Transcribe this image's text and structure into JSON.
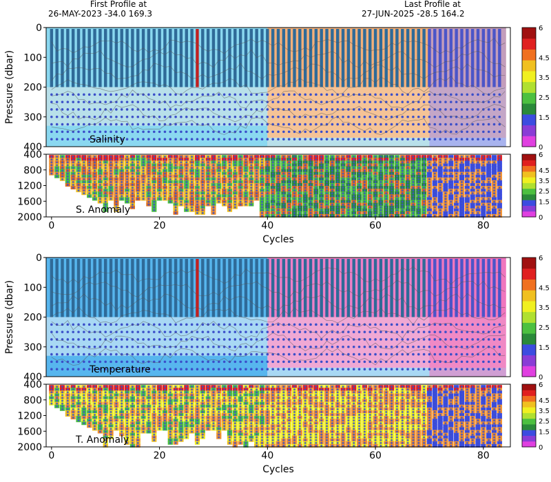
{
  "header": {
    "first_label": "First Profile at",
    "first_info": "26-MAY-2023    -34.0  169.3",
    "last_label": "Last Profile at",
    "last_info": "27-JUN-2025    -28.5  164.2"
  },
  "chart_data": [
    {
      "type": "heatmap",
      "name": "Salinity",
      "ylabel": "Pressure (dbar)",
      "xlim": [
        -1,
        85
      ],
      "ylim": [
        400,
        0
      ],
      "yticks": [
        "0",
        "100",
        "200",
        "300",
        "400"
      ],
      "colorbar": [
        "0",
        "1.5",
        "2.5",
        "3.5",
        "4.5",
        "6"
      ]
    },
    {
      "type": "heatmap",
      "name": "S. Anomaly",
      "xlabel": "Cycles",
      "xlim": [
        -1,
        85
      ],
      "ylim": [
        2000,
        400
      ],
      "yticks": [
        "400",
        "800",
        "1200",
        "1600",
        "2000"
      ],
      "xticks": [
        "0",
        "20",
        "40",
        "60",
        "80"
      ],
      "colorbar": [
        "0",
        "1.5",
        "2.5",
        "3.5",
        "4.5",
        "6"
      ]
    },
    {
      "type": "heatmap",
      "name": "Temperature",
      "ylabel": "Pressure (dbar)",
      "xlim": [
        -1,
        85
      ],
      "ylim": [
        400,
        0
      ],
      "yticks": [
        "0",
        "100",
        "200",
        "300",
        "400"
      ],
      "colorbar": [
        "0",
        "1.5",
        "2.5",
        "3.5",
        "4.5",
        "6"
      ]
    },
    {
      "type": "heatmap",
      "name": "T. Anomaly",
      "xlabel": "Cycles",
      "xlim": [
        -1,
        85
      ],
      "ylim": [
        2000,
        400
      ],
      "yticks": [
        "400",
        "800",
        "1200",
        "1600",
        "2000"
      ],
      "xticks": [
        "0",
        "20",
        "40",
        "60",
        "80"
      ],
      "colorbar": [
        "0",
        "1.5",
        "2.5",
        "3.5",
        "4.5",
        "6"
      ]
    }
  ],
  "colors": {
    "colorbar_scale": [
      "#e040e0",
      "#8a3cd6",
      "#3c4ce0",
      "#2a8a3a",
      "#4cc040",
      "#b0e030",
      "#f0f020",
      "#f0c020",
      "#f07020",
      "#e02020",
      "#a01010"
    ],
    "profile_line": "#2f6a98",
    "dot": "#3b4fc9",
    "salinity_bg": [
      "#8ad8f0",
      "#b8e0ea",
      "#f5c396",
      "#f3b07a",
      "#9a8ef0"
    ],
    "temperature_bg": [
      "#57b6ee",
      "#a8d8f4",
      "#f0a8d4",
      "#ee7fc6",
      "#f070b8"
    ]
  }
}
